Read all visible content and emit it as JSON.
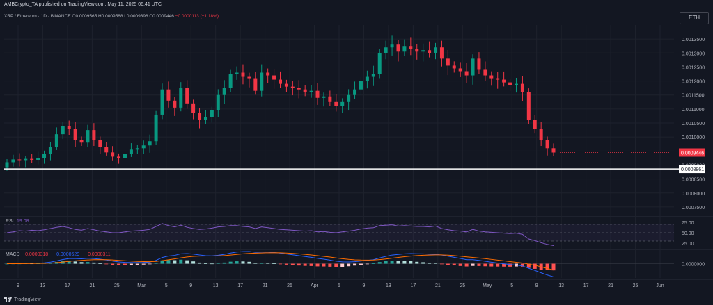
{
  "header": {
    "publisher_line": "AMBCrypto_TA published on TradingView.com, May 11, 2025 06:41 UTC"
  },
  "currency_button": "ETH",
  "legend": {
    "symbol": "XRP / Ethereum · 1D · BINANCE",
    "o": "O0.0009565",
    "h": "H0.0009588",
    "l": "L0.0009398",
    "c": "C0.0009446",
    "change": "−0.0000113 (−1.18%)"
  },
  "footer": {
    "brand": "TradingView"
  },
  "colors": {
    "up": "#089981",
    "down": "#f23645",
    "rsi": "#7e57c2",
    "macd": "#2962ff",
    "signal": "#ff6d00",
    "bg": "#131722"
  },
  "chart_data": [
    {
      "type": "candlestick",
      "title": "XRP / Ethereum · 1D · BINANCE",
      "ylim": [
        0.00072,
        0.0014
      ],
      "y_ticks": [
        "0.0013500",
        "0.0013000",
        "0.0012500",
        "0.0012000",
        "0.0011500",
        "0.0011000",
        "0.0010500",
        "0.0010000",
        "0.0009500",
        "0.0009000",
        "0.0008500",
        "0.0008000",
        "0.0007500"
      ],
      "x_ticks": [
        "9",
        "13",
        "17",
        "21",
        "25",
        "Mar",
        "5",
        "9",
        "13",
        "17",
        "21",
        "25",
        "Apr",
        "5",
        "9",
        "13",
        "17",
        "21",
        "25",
        "May",
        "5",
        "9",
        "13",
        "17",
        "21",
        "25",
        "Jun"
      ],
      "last_price_label": "0.0009446",
      "hline_label": "0.0008861",
      "hline_value": 0.0008861,
      "candles_close": [
        0.00091,
        0.00092,
        0.000915,
        0.000922,
        0.000918,
        0.000925,
        0.00094,
        0.000965,
        0.00101,
        0.00104,
        0.00103,
        0.00099,
        0.00098,
        0.001025,
        0.00099,
        0.000965,
        0.000945,
        0.00093,
        0.000925,
        0.00094,
        0.000955,
        0.00096,
        0.00097,
        0.000985,
        0.00108,
        0.00117,
        0.00113,
        0.001105,
        0.001175,
        0.00112,
        0.001085,
        0.00106,
        0.00107,
        0.001095,
        0.00115,
        0.001175,
        0.001225,
        0.00123,
        0.001215,
        0.00121,
        0.001165,
        0.00123,
        0.00122,
        0.001205,
        0.00119,
        0.00118,
        0.001175,
        0.00117,
        0.00116,
        0.001165,
        0.00114,
        0.001145,
        0.001125,
        0.00111,
        0.001125,
        0.00115,
        0.00117,
        0.0012,
        0.001215,
        0.001225,
        0.0013,
        0.00132,
        0.00133,
        0.001305,
        0.001325,
        0.001315,
        0.001305,
        0.00131,
        0.0013,
        0.00132,
        0.00128,
        0.001255,
        0.001245,
        0.001235,
        0.00122,
        0.00128,
        0.00124,
        0.00122,
        0.00121,
        0.001205,
        0.001195,
        0.001185,
        0.00119,
        0.00116,
        0.00106,
        0.00103,
        0.00099,
        0.00096,
        0.0009446
      ],
      "candles_open": [
        0.00089,
        0.00091,
        0.00092,
        0.000915,
        0.000922,
        0.000918,
        0.000925,
        0.00094,
        0.000965,
        0.00101,
        0.00104,
        0.00103,
        0.00099,
        0.00098,
        0.001025,
        0.00099,
        0.000965,
        0.000945,
        0.00093,
        0.000925,
        0.00094,
        0.000955,
        0.00096,
        0.00097,
        0.000985,
        0.00108,
        0.00117,
        0.00113,
        0.001105,
        0.001175,
        0.00112,
        0.001085,
        0.00106,
        0.00107,
        0.001095,
        0.00115,
        0.001175,
        0.001225,
        0.00123,
        0.001215,
        0.00121,
        0.001165,
        0.00123,
        0.00122,
        0.001205,
        0.00119,
        0.00118,
        0.001175,
        0.00117,
        0.00116,
        0.001165,
        0.00114,
        0.001145,
        0.001125,
        0.00111,
        0.001125,
        0.00115,
        0.00117,
        0.0012,
        0.001215,
        0.001225,
        0.0013,
        0.00132,
        0.00133,
        0.001305,
        0.001325,
        0.001315,
        0.001305,
        0.00131,
        0.0013,
        0.00132,
        0.00128,
        0.001255,
        0.001245,
        0.001235,
        0.00122,
        0.00128,
        0.00124,
        0.00122,
        0.00121,
        0.001205,
        0.001195,
        0.001185,
        0.00119,
        0.00116,
        0.00106,
        0.00103,
        0.00099,
        0.00096
      ]
    },
    {
      "type": "line",
      "title": "RSI",
      "value_label": "19.08",
      "y_ticks": [
        "75.00",
        "50.00",
        "25.00"
      ],
      "ylim": [
        15,
        85
      ],
      "values": [
        50,
        52,
        55,
        54,
        56,
        55,
        57,
        60,
        63,
        65,
        62,
        58,
        56,
        60,
        57,
        54,
        52,
        50,
        50,
        52,
        54,
        55,
        56,
        58,
        65,
        72,
        67,
        64,
        68,
        63,
        60,
        58,
        59,
        61,
        64,
        65,
        67,
        67,
        65,
        64,
        60,
        64,
        62,
        60,
        58,
        57,
        56,
        55,
        54,
        55,
        52,
        53,
        51,
        50,
        52,
        54,
        56,
        59,
        61,
        62,
        67,
        68,
        69,
        66,
        67,
        66,
        65,
        65,
        64,
        66,
        60,
        57,
        55,
        54,
        52,
        58,
        54,
        52,
        51,
        50,
        49,
        48,
        49,
        46,
        35,
        31,
        26,
        22,
        19.08
      ]
    },
    {
      "type": "bar",
      "title": "MACD",
      "value_labels": [
        "−0.0000318",
        "−0.0000629",
        "−0.0000311"
      ],
      "y_ticks": [
        "0.0000000"
      ],
      "ylim": [
        -7e-05,
        6e-05
      ]
    }
  ]
}
